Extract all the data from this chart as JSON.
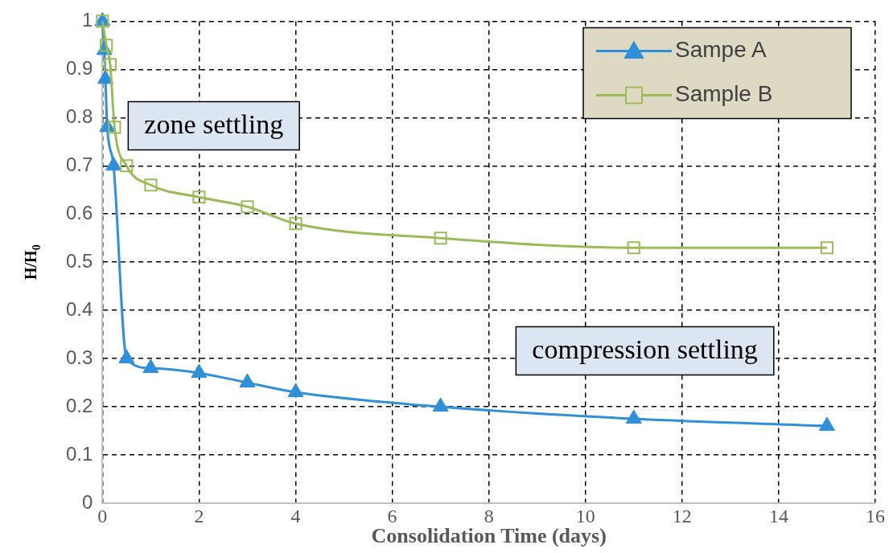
{
  "chart_data": {
    "type": "line",
    "xlabel": "Consolidation Time (days)",
    "ylabel": "H/H$_{0}$",
    "xlim": [
      0,
      16
    ],
    "xticks": [
      0,
      2,
      4,
      6,
      8,
      10,
      12,
      14,
      16
    ],
    "ylim": [
      0,
      1
    ],
    "yticks": [
      0,
      0.1,
      0.2,
      0.3,
      0.4,
      0.5,
      0.6,
      0.7,
      0.8,
      0.9,
      1
    ],
    "grid": true,
    "legend": "top right",
    "series": [
      {
        "name": "Sampe A",
        "color": "#2f8fd8",
        "marker": "triangle",
        "x": [
          0,
          0.04,
          0.06,
          0.1,
          0.23,
          0.5,
          1,
          2,
          3,
          4,
          7,
          11,
          15
        ],
        "values": [
          1,
          0.94,
          0.88,
          0.78,
          0.7,
          0.3,
          0.28,
          0.27,
          0.25,
          0.23,
          0.2,
          0.175,
          0.16
        ]
      },
      {
        "name": "Sample B",
        "color": "#9bbb59",
        "marker": "square",
        "x": [
          0,
          0.08,
          0.16,
          0.25,
          0.5,
          1,
          2,
          3,
          4,
          7,
          11,
          15
        ],
        "values": [
          1,
          0.95,
          0.91,
          0.78,
          0.7,
          0.66,
          0.635,
          0.615,
          0.58,
          0.55,
          0.53,
          0.53
        ]
      }
    ],
    "annotations": [
      "zone settling",
      "compression settling"
    ]
  }
}
